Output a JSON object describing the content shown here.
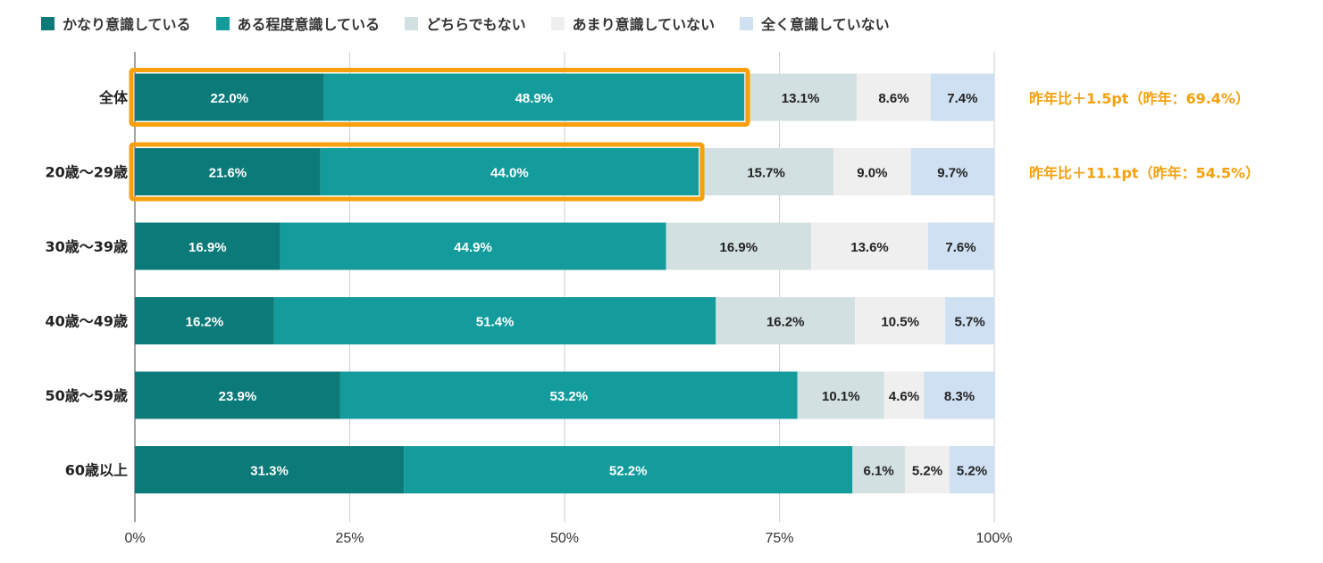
{
  "chart_data": {
    "type": "bar",
    "orientation": "horizontal",
    "stacked": true,
    "categories": [
      "全体",
      "20歳〜29歳",
      "30歳〜39歳",
      "40歳〜49歳",
      "50歳〜59歳",
      "60歳以上"
    ],
    "series": [
      {
        "name": "かなり意識している",
        "color": "#0b7a78",
        "label_color": "#ffffff",
        "values": [
          22.0,
          21.6,
          16.9,
          16.2,
          23.9,
          31.3
        ]
      },
      {
        "name": "ある程度意識している",
        "color": "#149c9c",
        "label_color": "#ffffff",
        "values": [
          48.9,
          44.0,
          44.9,
          51.4,
          53.2,
          52.2
        ]
      },
      {
        "name": "どちらでもない",
        "color": "#d3e0e2",
        "label_color": "#222222",
        "values": [
          13.1,
          15.7,
          16.9,
          16.2,
          10.1,
          6.1
        ]
      },
      {
        "name": "あまり意識していない",
        "color": "#efefef",
        "label_color": "#222222",
        "values": [
          8.6,
          9.0,
          13.6,
          10.5,
          4.6,
          5.2
        ]
      },
      {
        "name": "全く意識していない",
        "color": "#cfe0f2",
        "label_color": "#222222",
        "values": [
          7.4,
          9.7,
          7.6,
          5.7,
          8.3,
          5.2
        ]
      }
    ],
    "x_ticks": [
      "0%",
      "25%",
      "50%",
      "75%",
      "100%"
    ],
    "xlim": [
      0,
      100
    ],
    "grid": true,
    "legend_position": "top",
    "highlight_series_count": 2,
    "highlight_color": "#f5a00c",
    "annotations": [
      {
        "category": "全体",
        "text": "昨年比＋1.5pt（昨年：69.4%）"
      },
      {
        "category": "20歳〜29歳",
        "text": "昨年比＋11.1pt（昨年：54.5%）"
      }
    ],
    "annotation_color": "#f5a00c"
  }
}
